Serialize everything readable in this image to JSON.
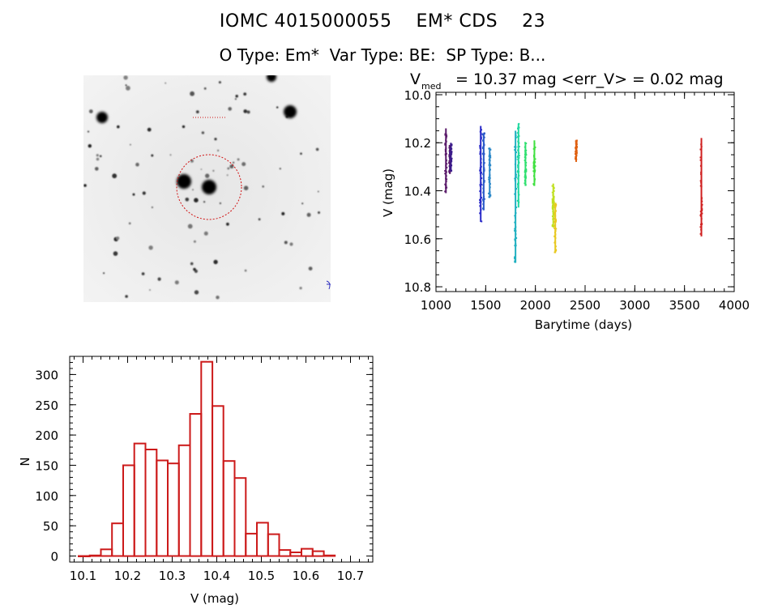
{
  "header": {
    "title_line1": "IOMC 4015000055    EM* CDS    23",
    "title_line2": "O Type: Em*  Var Type: BE:  SP Type: B..."
  },
  "colors": {
    "hist_bar": "#cc1a1a",
    "circle": "#d01010",
    "axis": "#000000"
  },
  "finder_chart": {
    "description_marks": "star field image with red aperture circle"
  },
  "chart_data": [
    {
      "type": "scatter",
      "title_main": "V",
      "title_sub": "med",
      "title_rest": " = 10.37 mag <err_V> = 0.02 mag",
      "xlabel": "Barytime (days)",
      "ylabel": "V (mag)",
      "xlim": [
        1000,
        4000
      ],
      "ylim": [
        10.82,
        9.99
      ],
      "y_inverted": true,
      "xticks": [
        1000,
        1500,
        2000,
        2500,
        3000,
        3500,
        4000
      ],
      "yticks": [
        10.0,
        10.2,
        10.4,
        10.6,
        10.8
      ],
      "ytick_labels": [
        "10.0",
        "10.2",
        "10.4",
        "10.6",
        "10.8"
      ],
      "series": [
        {
          "color": "#5a1a6a",
          "x": 1100,
          "ymin": 10.14,
          "ymax": 10.41
        },
        {
          "color": "#5a1a6a",
          "x": 1140,
          "ymin": 10.21,
          "ymax": 10.33
        },
        {
          "color": "#3a1a8a",
          "x": 1150,
          "ymin": 10.2,
          "ymax": 10.32
        },
        {
          "color": "#2a2ac8",
          "x": 1450,
          "ymin": 10.13,
          "ymax": 10.53
        },
        {
          "color": "#2a5ac8",
          "x": 1480,
          "ymin": 10.16,
          "ymax": 10.48
        },
        {
          "color": "#2a88c8",
          "x": 1540,
          "ymin": 10.22,
          "ymax": 10.43
        },
        {
          "color": "#20b0c0",
          "x": 1800,
          "ymin": 10.15,
          "ymax": 10.7
        },
        {
          "color": "#20d8a0",
          "x": 1830,
          "ymin": 10.12,
          "ymax": 10.47
        },
        {
          "color": "#30e070",
          "x": 1900,
          "ymin": 10.2,
          "ymax": 10.38
        },
        {
          "color": "#40e040",
          "x": 1990,
          "ymin": 10.19,
          "ymax": 10.38
        },
        {
          "color": "#c0e020",
          "x": 2180,
          "ymin": 10.37,
          "ymax": 10.55
        },
        {
          "color": "#e8c820",
          "x": 2200,
          "ymin": 10.45,
          "ymax": 10.66
        },
        {
          "color": "#e06010",
          "x": 2410,
          "ymin": 10.19,
          "ymax": 10.28
        },
        {
          "color": "#d02020",
          "x": 3670,
          "ymin": 10.18,
          "ymax": 10.59
        }
      ]
    },
    {
      "type": "bar",
      "xlabel": "V (mag)",
      "ylabel": "N",
      "xlim": [
        10.07,
        10.75
      ],
      "ylim": [
        -10,
        330
      ],
      "xticks": [
        10.1,
        10.2,
        10.3,
        10.4,
        10.5,
        10.6,
        10.7
      ],
      "xtick_labels": [
        "10.1",
        "10.2",
        "10.3",
        "10.4",
        "10.5",
        "10.6",
        "10.7"
      ],
      "yticks": [
        0,
        50,
        100,
        150,
        200,
        250,
        300
      ],
      "bin_width": 0.025,
      "bin_start": 10.09,
      "values": [
        0,
        1,
        11,
        54,
        150,
        186,
        176,
        158,
        153,
        183,
        235,
        321,
        248,
        157,
        129,
        37,
        55,
        36,
        10,
        6,
        12,
        8,
        1
      ]
    }
  ]
}
